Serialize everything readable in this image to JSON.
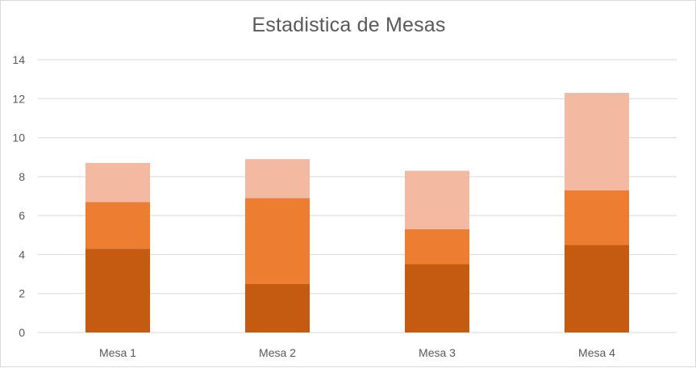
{
  "chart_data": {
    "type": "bar",
    "stacked": true,
    "title": "Estadistica de Mesas",
    "xlabel": "",
    "ylabel": "",
    "categories": [
      "Mesa 1",
      "Mesa 2",
      "Mesa 3",
      "Mesa 4"
    ],
    "series": [
      {
        "values": [
          4.3,
          2.5,
          3.5,
          4.5
        ],
        "color": "#c55a11"
      },
      {
        "values": [
          2.4,
          4.4,
          1.8,
          2.8
        ],
        "color": "#ed7d31"
      },
      {
        "values": [
          2.0,
          2.0,
          3.0,
          5.0
        ],
        "color": "#f4b9a1"
      }
    ],
    "ylim": [
      0,
      14
    ],
    "yticks": [
      0,
      2,
      4,
      6,
      8,
      10,
      12,
      14
    ],
    "grid": true,
    "legend": "none"
  }
}
